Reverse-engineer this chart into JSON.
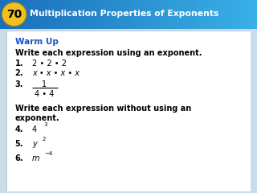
{
  "header_bg_color_top": "#1a6fba",
  "header_bg_color_bot": "#3ab0e8",
  "badge_bg_color": "#f0c020",
  "badge_text_color": "#000000",
  "badge_number": "70",
  "header_title": "Multiplication Properties of Exponents",
  "body_bg_color": "#ffffff",
  "body_border_color": "#c0c8d0",
  "outer_bg_color": "#c8dcea",
  "warm_up_color": "#1a50cc",
  "warm_up_text": "Warm Up",
  "body_text_color": "#000000",
  "line1_bold": "Write each expression using an exponent.",
  "item1_label": "1.",
  "item1_text": "2 • 2 • 2",
  "item2_label": "2.",
  "item2_text": "x • x • x • x",
  "item3_label": "3.",
  "item3_num": "1",
  "item3_den": "4 • 4",
  "line2_bold1": "Write each expression without using an",
  "line2_bold2": "exponent.",
  "item4_label": "4.",
  "item4_base": "4",
  "item4_exp": "3",
  "item5_label": "5.",
  "item5_base": "y",
  "item5_exp": "2",
  "item6_label": "6.",
  "item6_base": "m",
  "item6_exp": "−4",
  "fig_width": 3.2,
  "fig_height": 2.4,
  "dpi": 100
}
